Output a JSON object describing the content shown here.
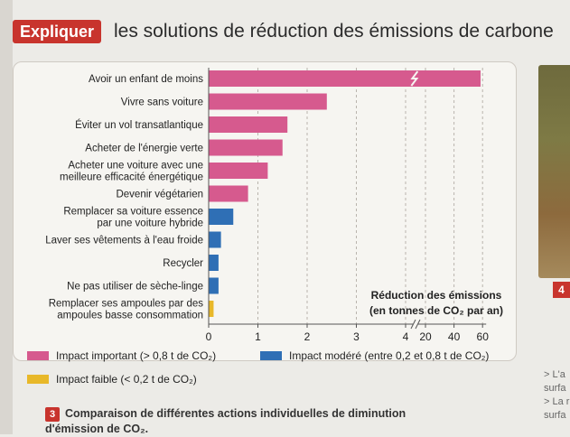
{
  "header": {
    "tag": "Expliquer",
    "title": "les solutions de réduction des émissions de carbone"
  },
  "chart_data": {
    "type": "bar",
    "orientation": "horizontal",
    "categories": [
      "Avoir un enfant de moins",
      "Vivre sans voiture",
      "Éviter un vol transatlantique",
      "Acheter de l'énergie verte",
      "Acheter une voiture avec une meilleure efficacité énergétique",
      "Devenir végétarien",
      "Remplacer sa voiture essence par une voiture hybride",
      "Laver ses vêtements à l'eau froide",
      "Recycler",
      "Ne pas utiliser de sèche-linge",
      "Remplacer ses ampoules par des ampoules basse consommation"
    ],
    "category_lines": [
      [
        "Avoir un enfant de moins"
      ],
      [
        "Vivre sans voiture"
      ],
      [
        "Éviter un vol transatlantique"
      ],
      [
        "Acheter de l'énergie verte"
      ],
      [
        "Acheter une voiture avec une",
        "meilleure efficacité énergétique"
      ],
      [
        "Devenir végétarien"
      ],
      [
        "Remplacer sa voiture essence",
        "par une voiture hybride"
      ],
      [
        "Laver ses vêtements à l'eau froide"
      ],
      [
        "Recycler"
      ],
      [
        "Ne pas utiliser de sèche-linge"
      ],
      [
        "Remplacer ses ampoules par des",
        "ampoules basse consommation"
      ]
    ],
    "values": [
      58.6,
      2.4,
      1.6,
      1.5,
      1.2,
      0.8,
      0.5,
      0.25,
      0.2,
      0.2,
      0.1
    ],
    "impact": [
      "important",
      "important",
      "important",
      "important",
      "important",
      "important",
      "modere",
      "modere",
      "modere",
      "modere",
      "faible"
    ],
    "xticks": [
      "0",
      "1",
      "2",
      "3",
      "4",
      "20",
      "40",
      "60"
    ],
    "x_scale": "broken axis: linear 0–4, then linear 20–60",
    "axis_title_lines": [
      "Réduction des émissions",
      "(en tonnes de CO₂ par an)"
    ],
    "grid": true
  },
  "legend": {
    "items": [
      {
        "label": "Impact important (> 0,8 t de CO₂)",
        "color": "#d65a8e"
      },
      {
        "label": "Impact modéré (entre 0,2 et 0,8 t de CO₂)",
        "color": "#2f6fb5"
      },
      {
        "label": "Impact faible (< 0,2 t de CO₂)",
        "color": "#e8b829"
      }
    ]
  },
  "colors": {
    "important": "#d65a8e",
    "modere": "#2f6fb5",
    "faible": "#e8b829"
  },
  "caption": {
    "number": "3",
    "text": "Comparaison de différentes actions individuelles de diminution d'émission de CO₂."
  },
  "right_side": {
    "badge": "4",
    "notes": [
      "> L'a",
      "surfa",
      "> La r",
      "surfa"
    ]
  }
}
